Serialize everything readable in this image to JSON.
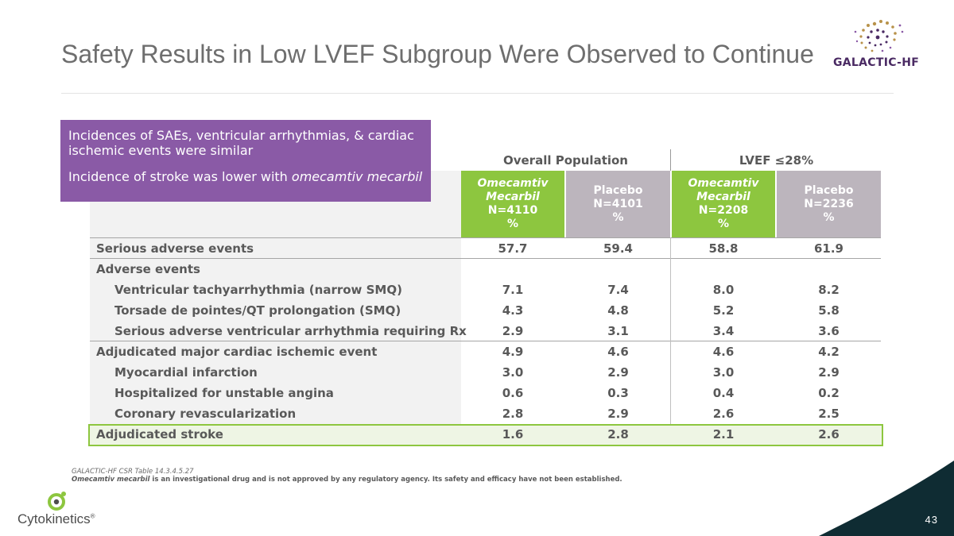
{
  "title": "Safety Results in Low LVEF Subgroup Were Observed to Continue",
  "logo": {
    "text": "GALACTIC-HF",
    "colors": [
      "#4a2a63",
      "#b8924a",
      "#8a5aa6"
    ]
  },
  "callout": {
    "line1": "Incidences of SAEs, ventricular arrhythmias, & cardiac ischemic events were similar",
    "line2_prefix": "Incidence of stroke was lower with ",
    "line2_italic": "omecamtiv mecarbil"
  },
  "table": {
    "group_headers": {
      "overall": "Overall Population",
      "lvef": "LVEF ≤28%"
    },
    "columns": [
      {
        "drug": "Omecamtiv",
        "drug2": "Mecarbil",
        "n": "N=4110",
        "unit": "%"
      },
      {
        "drug": "Placebo",
        "n": "N=4101",
        "unit": "%"
      },
      {
        "drug": "Omecamtiv",
        "drug2": "Mecarbil",
        "n": "N=2208",
        "unit": "%"
      },
      {
        "drug": "Placebo",
        "n": "N=2236",
        "unit": "%"
      }
    ],
    "rows": [
      {
        "label": "Serious adverse events",
        "values": [
          "57.7",
          "59.4",
          "58.8",
          "61.9"
        ]
      },
      {
        "label": "Adverse events",
        "values": [
          "",
          "",
          "",
          ""
        ]
      },
      {
        "label": "Ventricular tachyarrhythmia (narrow SMQ)",
        "values": [
          "7.1",
          "7.4",
          "8.0",
          "8.2"
        ]
      },
      {
        "label": "Torsade de pointes/QT prolongation (SMQ)",
        "values": [
          "4.3",
          "4.8",
          "5.2",
          "5.8"
        ]
      },
      {
        "label": "Serious adverse ventricular arrhythmia requiring Rx",
        "values": [
          "2.9",
          "3.1",
          "3.4",
          "3.6"
        ]
      },
      {
        "label": "Adjudicated major cardiac ischemic event",
        "values": [
          "4.9",
          "4.6",
          "4.6",
          "4.2"
        ]
      },
      {
        "label": "Myocardial infarction",
        "values": [
          "3.0",
          "2.9",
          "3.0",
          "2.9"
        ]
      },
      {
        "label": "Hospitalized for unstable angina",
        "values": [
          "0.6",
          "0.3",
          "0.4",
          "0.2"
        ]
      },
      {
        "label": "Coronary revascularization",
        "values": [
          "2.8",
          "2.9",
          "2.6",
          "2.5"
        ]
      },
      {
        "label": "Adjudicated stroke",
        "values": [
          "1.6",
          "2.8",
          "2.1",
          "2.6"
        ]
      }
    ]
  },
  "footnote": {
    "source": "GALACTIC-HF CSR Table 14.3.4.5.27",
    "disclaimer_italic": "Omecamtiv mecarbil",
    "disclaimer_rest": " is an investigational drug and is not approved by any regulatory agency. Its safety and efficacy have not been established."
  },
  "company": "Cytokinetics",
  "company_mark": "®",
  "page_number": "43",
  "colors": {
    "accent_green": "#8dc63f",
    "placebo_grey": "#bcb5bd",
    "callout_purple": "#8a5aa6",
    "corner_dark": "#0f2c33"
  }
}
